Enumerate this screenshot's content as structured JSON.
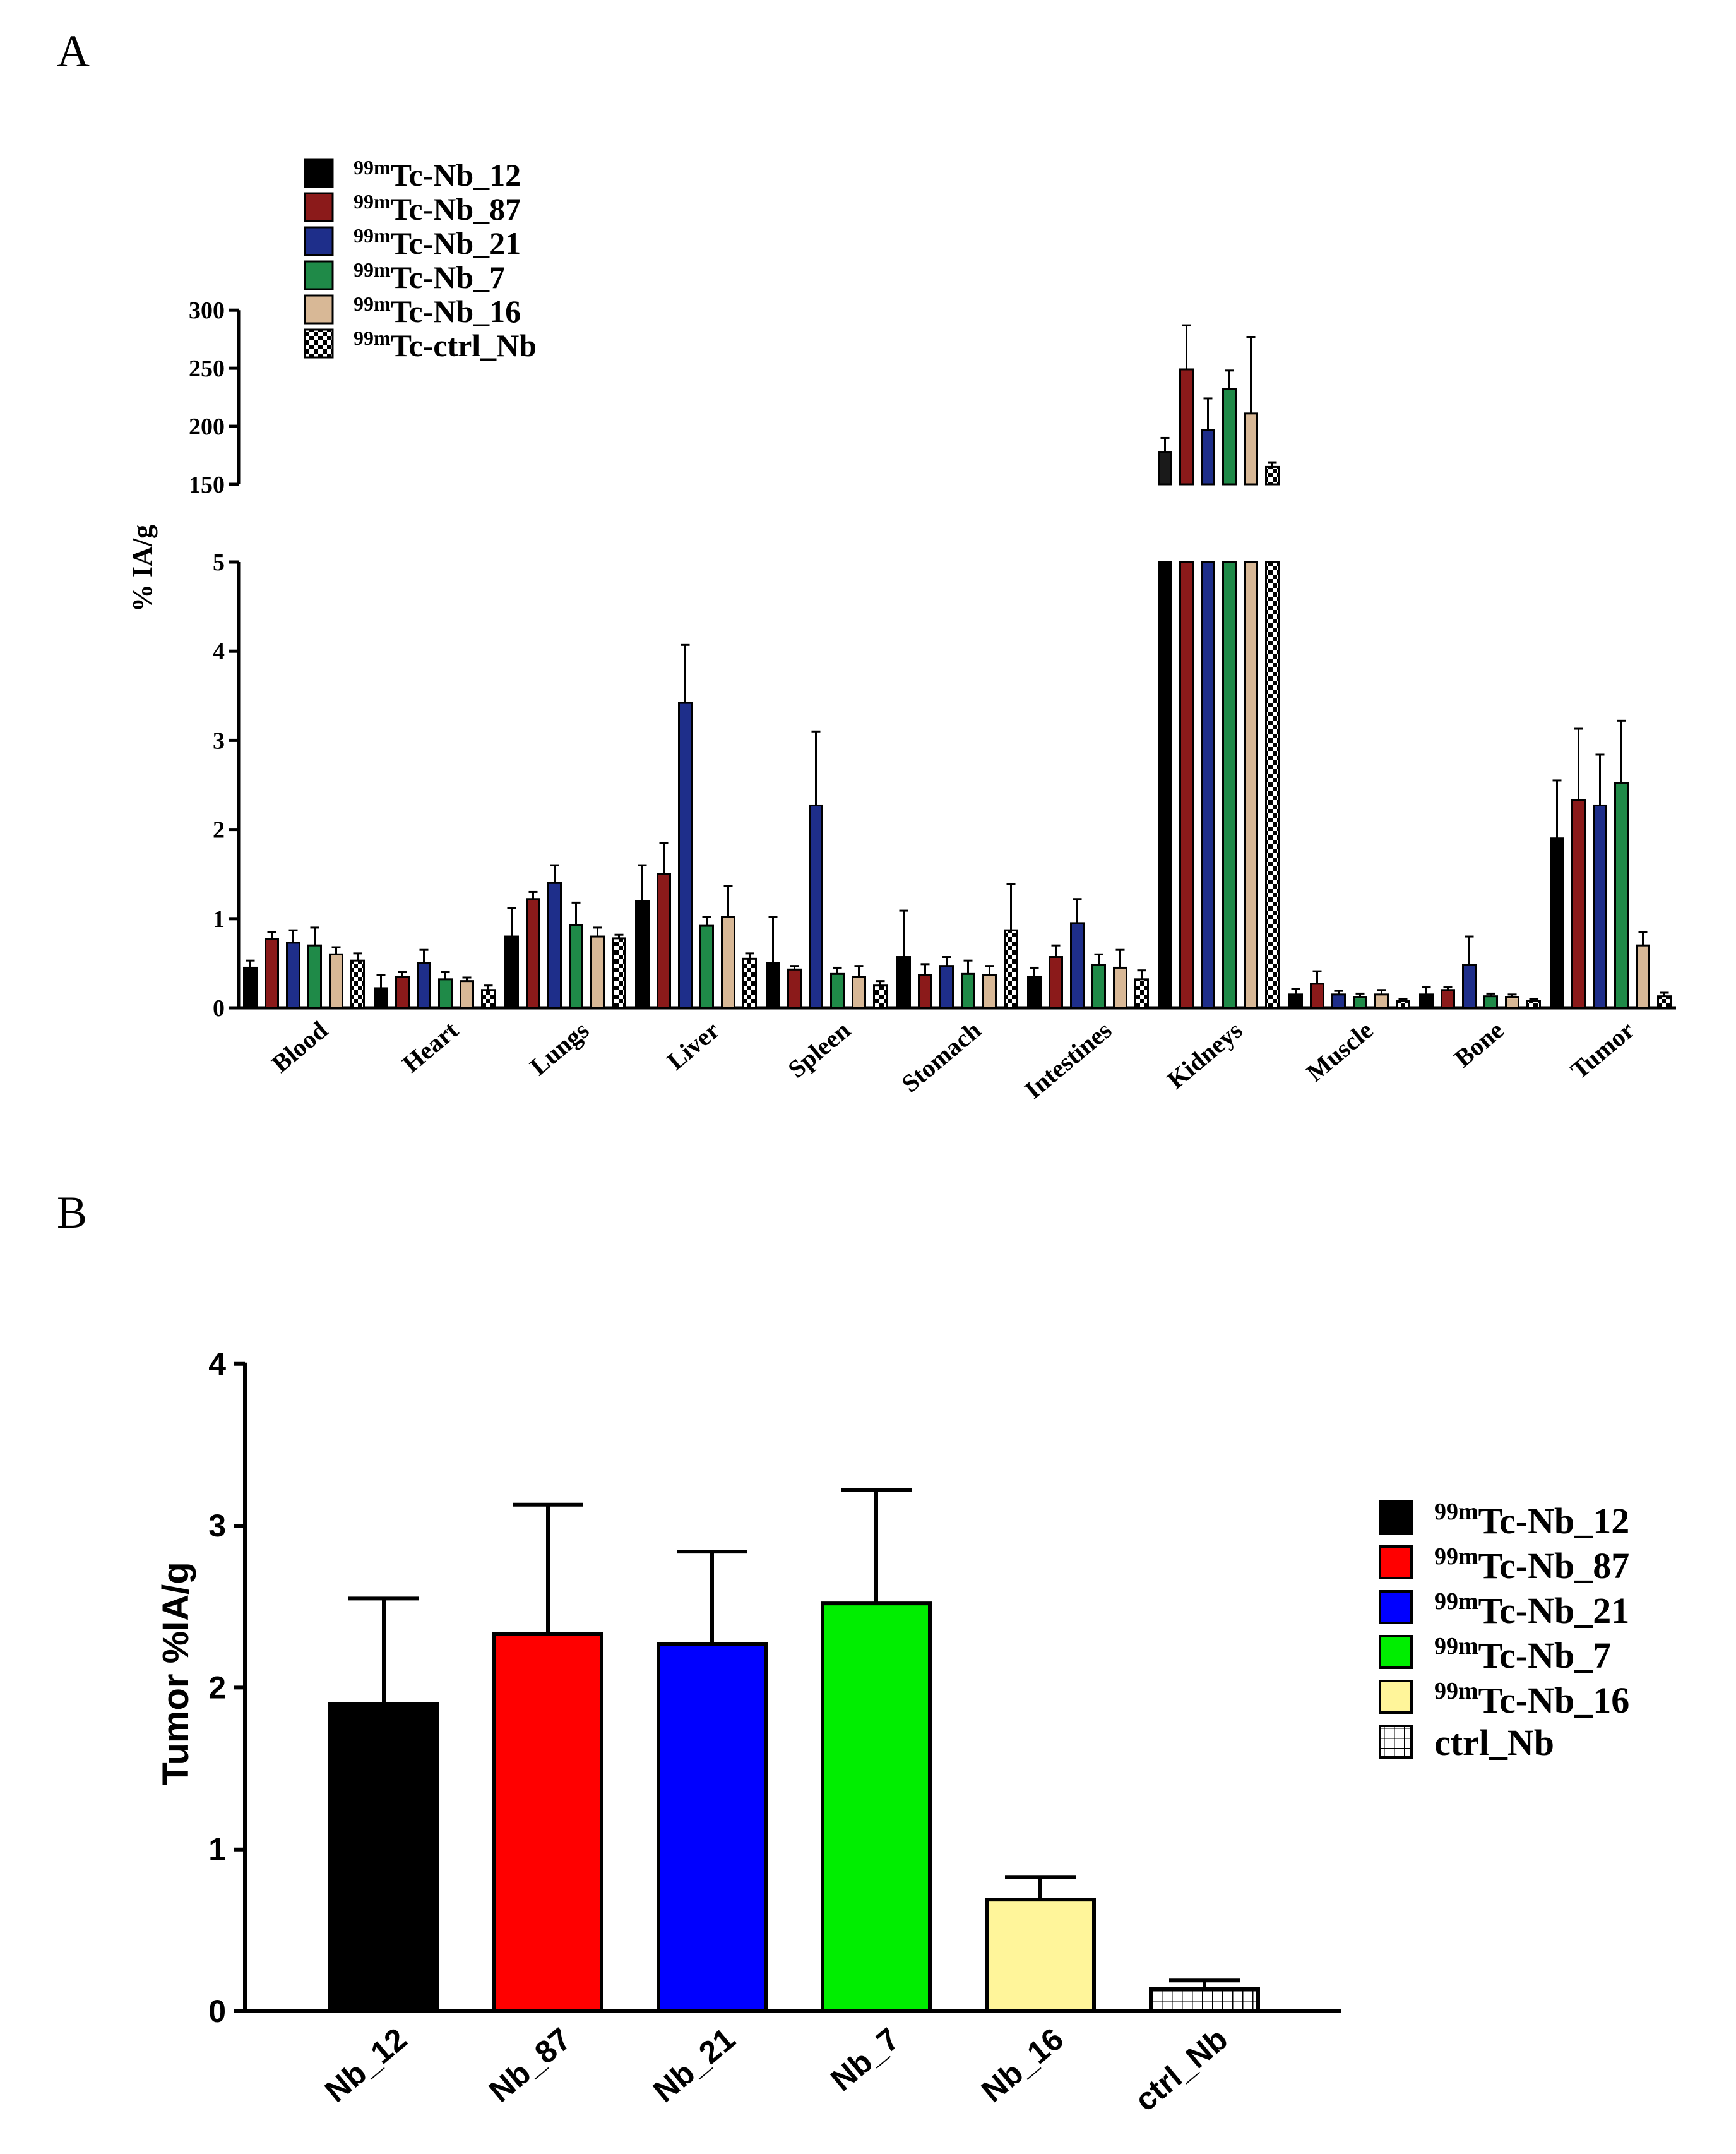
{
  "colors": {
    "nb12": "#000000",
    "nb87": "#e00000",
    "nb21": "#0000d8",
    "nb7": "#00c800",
    "nb16": "#f2c89a",
    "ctrl": "#ffffff",
    "kidneyTop": [
      "#1a1a1a",
      "#8b1a1a",
      "#1e2e8a",
      "#1f8a48",
      "#d8b896"
    ],
    "panelAColors": [
      "#000000",
      "#8b1a1a",
      "#1e2e8a",
      "#1f8a48",
      "#d8b896",
      "#ffffff"
    ],
    "panelBFill": [
      "#000000",
      "#ff0000",
      "#0000ff",
      "#00ee00",
      "#fff59a",
      "#ffffff"
    ]
  },
  "chart_data": [
    {
      "panel_label": "A",
      "type": "bar",
      "title": "",
      "xlabel": "",
      "ylabel": "% IA/g",
      "y_axis_break": true,
      "ylim_lower": [
        0,
        5
      ],
      "ylim_upper": [
        150,
        300
      ],
      "yticks_lower": [
        "0",
        "1",
        "2",
        "3",
        "4",
        "5"
      ],
      "yticks_upper": [
        "150",
        "200",
        "250",
        "300"
      ],
      "categories": [
        "Blood",
        "Heart",
        "Lungs",
        "Liver",
        "Spleen",
        "Stomach",
        "Intestines",
        "Kidneys",
        "Muscle",
        "Bone",
        "Tumor"
      ],
      "legend": {
        "position": "top-left",
        "prefix": "99m",
        "labels": [
          "Tc-Nb_12",
          "Tc-Nb_87",
          "Tc-Nb_21",
          "Tc-Nb_7",
          "Tc-Nb_16",
          "Tc-ctrl_Nb"
        ]
      },
      "series": [
        {
          "name": "99mTc-Nb_12",
          "values": [
            0.45,
            0.22,
            0.8,
            1.2,
            0.5,
            0.57,
            0.35,
            178,
            0.15,
            0.15,
            1.9
          ],
          "errors": [
            0.08,
            0.15,
            0.32,
            0.4,
            0.52,
            0.52,
            0.1,
            12,
            0.06,
            0.08,
            0.65
          ]
        },
        {
          "name": "99mTc-Nb_87",
          "values": [
            0.77,
            0.35,
            1.22,
            1.5,
            0.43,
            0.37,
            0.57,
            249,
            0.27,
            0.2,
            2.33
          ],
          "errors": [
            0.08,
            0.05,
            0.08,
            0.35,
            0.04,
            0.12,
            0.13,
            38,
            0.14,
            0.03,
            0.8
          ]
        },
        {
          "name": "99mTc-Nb_21",
          "values": [
            0.73,
            0.5,
            1.4,
            3.42,
            2.27,
            0.47,
            0.95,
            197,
            0.15,
            0.48,
            2.27
          ],
          "errors": [
            0.14,
            0.15,
            0.2,
            0.65,
            0.83,
            0.1,
            0.27,
            27,
            0.04,
            0.32,
            0.57
          ]
        },
        {
          "name": "99mTc-Nb_7",
          "values": [
            0.7,
            0.32,
            0.93,
            0.92,
            0.38,
            0.38,
            0.48,
            232,
            0.12,
            0.13,
            2.52
          ],
          "errors": [
            0.2,
            0.08,
            0.25,
            0.1,
            0.07,
            0.15,
            0.12,
            16,
            0.04,
            0.03,
            0.7
          ]
        },
        {
          "name": "99mTc-Nb_16",
          "values": [
            0.6,
            0.3,
            0.8,
            1.02,
            0.35,
            0.37,
            0.45,
            211,
            0.15,
            0.12,
            0.7
          ],
          "errors": [
            0.08,
            0.04,
            0.1,
            0.35,
            0.12,
            0.1,
            0.2,
            66,
            0.05,
            0.03,
            0.15
          ]
        },
        {
          "name": "99mTc-ctrl_Nb",
          "values": [
            0.53,
            0.2,
            0.78,
            0.55,
            0.25,
            0.87,
            0.32,
            165,
            0.08,
            0.08,
            0.13
          ],
          "errors": [
            0.08,
            0.05,
            0.04,
            0.06,
            0.05,
            0.52,
            0.1,
            4,
            0.02,
            0.02,
            0.04
          ]
        }
      ]
    },
    {
      "panel_label": "B",
      "type": "bar",
      "title": "",
      "xlabel": "",
      "ylabel": "Tumor %IA/g",
      "ylim": [
        0,
        4
      ],
      "yticks": [
        "0",
        "1",
        "2",
        "3",
        "4"
      ],
      "categories": [
        "Nb_12",
        "Nb_87",
        "Nb_21",
        "Nb_7",
        "Nb_16",
        "ctrl_Nb"
      ],
      "values": [
        1.9,
        2.33,
        2.27,
        2.52,
        0.69,
        0.14
      ],
      "errors": [
        0.65,
        0.8,
        0.57,
        0.7,
        0.14,
        0.05
      ],
      "legend": {
        "position": "right",
        "prefix": "99m",
        "labels": [
          "Tc-Nb_12",
          "Tc-Nb_87",
          "Tc-Nb_21",
          "Tc-Nb_7",
          "Tc-Nb_16"
        ],
        "ctrl_label": "ctrl_Nb"
      }
    }
  ]
}
